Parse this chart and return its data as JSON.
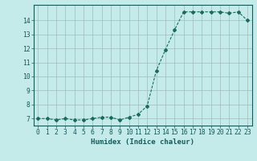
{
  "x": [
    0,
    1,
    2,
    3,
    4,
    5,
    6,
    7,
    8,
    9,
    10,
    11,
    12,
    13,
    14,
    15,
    16,
    17,
    18,
    19,
    20,
    21,
    22,
    23
  ],
  "y": [
    7.0,
    7.0,
    6.9,
    7.0,
    6.9,
    6.9,
    7.0,
    7.1,
    7.1,
    6.9,
    7.1,
    7.3,
    7.9,
    10.4,
    11.9,
    13.3,
    14.6,
    14.6,
    14.6,
    14.6,
    14.6,
    14.5,
    14.6,
    14.0
  ],
  "line_color": "#1a6b5e",
  "marker": "D",
  "marker_size": 2.0,
  "background_color": "#c5eaea",
  "grid_color": "#9fbcbc",
  "xlabel": "Humidex (Indice chaleur)",
  "xlim": [
    -0.5,
    23.5
  ],
  "ylim": [
    6.5,
    15.1
  ],
  "yticks": [
    7,
    8,
    9,
    10,
    11,
    12,
    13,
    14
  ],
  "xticks": [
    0,
    1,
    2,
    3,
    4,
    5,
    6,
    7,
    8,
    9,
    10,
    11,
    12,
    13,
    14,
    15,
    16,
    17,
    18,
    19,
    20,
    21,
    22,
    23
  ],
  "font_color": "#1a5a5a",
  "label_fontsize": 6.5,
  "tick_fontsize": 5.8
}
